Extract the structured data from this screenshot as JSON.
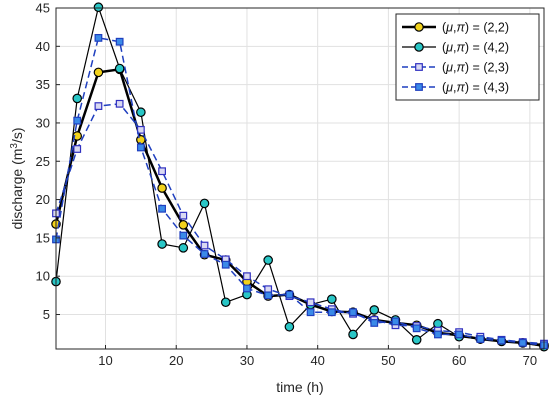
{
  "chart_data": {
    "type": "line",
    "xlabel": "time (h)",
    "ylabel_main": "discharge (m",
    "ylabel_sup": "3",
    "ylabel_tail": "/s)",
    "xlim": [
      3,
      72
    ],
    "ylim": [
      0.5,
      45
    ],
    "xticks": [
      10,
      20,
      30,
      40,
      50,
      60,
      70
    ],
    "yticks": [
      5,
      10,
      15,
      20,
      25,
      30,
      35,
      40,
      45
    ],
    "grid": true,
    "legend_position": "top-right",
    "series": [
      {
        "name": "(μ,π) = (2,2)",
        "legend_mu": "μ",
        "legend_pi": "π",
        "legend_value": "(2,2)",
        "line_color": "#000000",
        "line_style": "solid",
        "line_width": 2.5,
        "marker": "circle",
        "marker_fill": "#f2d21b",
        "marker_edge": "#000000",
        "x": [
          3,
          6,
          9,
          12,
          15,
          18,
          21,
          24,
          27,
          30,
          33,
          36,
          39,
          42,
          45,
          48,
          51,
          54,
          57,
          60,
          63,
          66,
          69,
          72
        ],
        "y": [
          16.8,
          28.3,
          36.6,
          37.0,
          27.8,
          21.5,
          16.7,
          12.8,
          12.1,
          9.3,
          7.4,
          7.6,
          6.3,
          5.4,
          5.3,
          4.3,
          3.9,
          3.6,
          2.6,
          2.3,
          1.8,
          1.5,
          1.3,
          1.0
        ]
      },
      {
        "name": "(μ,π) = (4,2)",
        "legend_mu": "μ",
        "legend_pi": "π",
        "legend_value": "(4,2)",
        "line_color": "#000000",
        "line_style": "solid",
        "line_width": 1.2,
        "marker": "circle",
        "marker_fill": "#29c6c6",
        "marker_edge": "#000000",
        "x": [
          3,
          6,
          9,
          12,
          15,
          18,
          21,
          24,
          27,
          30,
          33,
          36,
          39,
          42,
          45,
          48,
          51,
          54,
          57,
          60,
          63,
          66,
          69,
          72
        ],
        "y": [
          9.3,
          33.2,
          45.1,
          37.1,
          31.4,
          14.2,
          13.7,
          19.5,
          6.6,
          7.6,
          12.1,
          3.4,
          6.3,
          7.0,
          2.4,
          5.6,
          4.3,
          1.7,
          3.8,
          2.1,
          1.8,
          1.5,
          1.3,
          0.8
        ]
      },
      {
        "name": "(μ,π) = (2,3)",
        "legend_mu": "μ",
        "legend_pi": "π",
        "legend_value": "(2,3)",
        "line_color": "#1f3fbf",
        "line_style": "dashed",
        "line_width": 1.5,
        "marker": "square",
        "marker_fill": "#d9d9f2",
        "marker_edge": "#3030c0",
        "x": [
          3,
          6,
          9,
          12,
          15,
          18,
          21,
          24,
          27,
          30,
          33,
          36,
          39,
          42,
          45,
          48,
          51,
          54,
          57,
          60,
          63,
          66,
          69,
          72
        ],
        "y": [
          18.2,
          26.6,
          32.2,
          32.5,
          29.1,
          23.7,
          17.9,
          14.0,
          12.2,
          10.0,
          8.3,
          7.4,
          6.6,
          5.7,
          5.1,
          4.3,
          3.6,
          3.5,
          2.9,
          2.7,
          2.1,
          1.7,
          1.4,
          1.2
        ]
      },
      {
        "name": "(μ,π) = (4,3)",
        "legend_mu": "μ",
        "legend_pi": "π",
        "legend_value": "(4,3)",
        "line_color": "#1f3fbf",
        "line_style": "dashed",
        "line_width": 1.5,
        "marker": "square",
        "marker_fill": "#3a8ae8",
        "marker_edge": "#1f3fbf",
        "x": [
          3,
          6,
          9,
          12,
          15,
          18,
          21,
          24,
          27,
          30,
          33,
          36,
          39,
          42,
          45,
          48,
          51,
          54,
          57,
          60,
          63,
          66,
          69,
          72
        ],
        "y": [
          14.8,
          30.3,
          41.1,
          40.6,
          26.8,
          18.8,
          15.3,
          12.9,
          11.5,
          8.4,
          7.5,
          7.6,
          5.3,
          5.3,
          5.3,
          3.9,
          4.1,
          3.2,
          2.4,
          2.4,
          1.8,
          1.6,
          1.3,
          1.0
        ]
      }
    ]
  }
}
